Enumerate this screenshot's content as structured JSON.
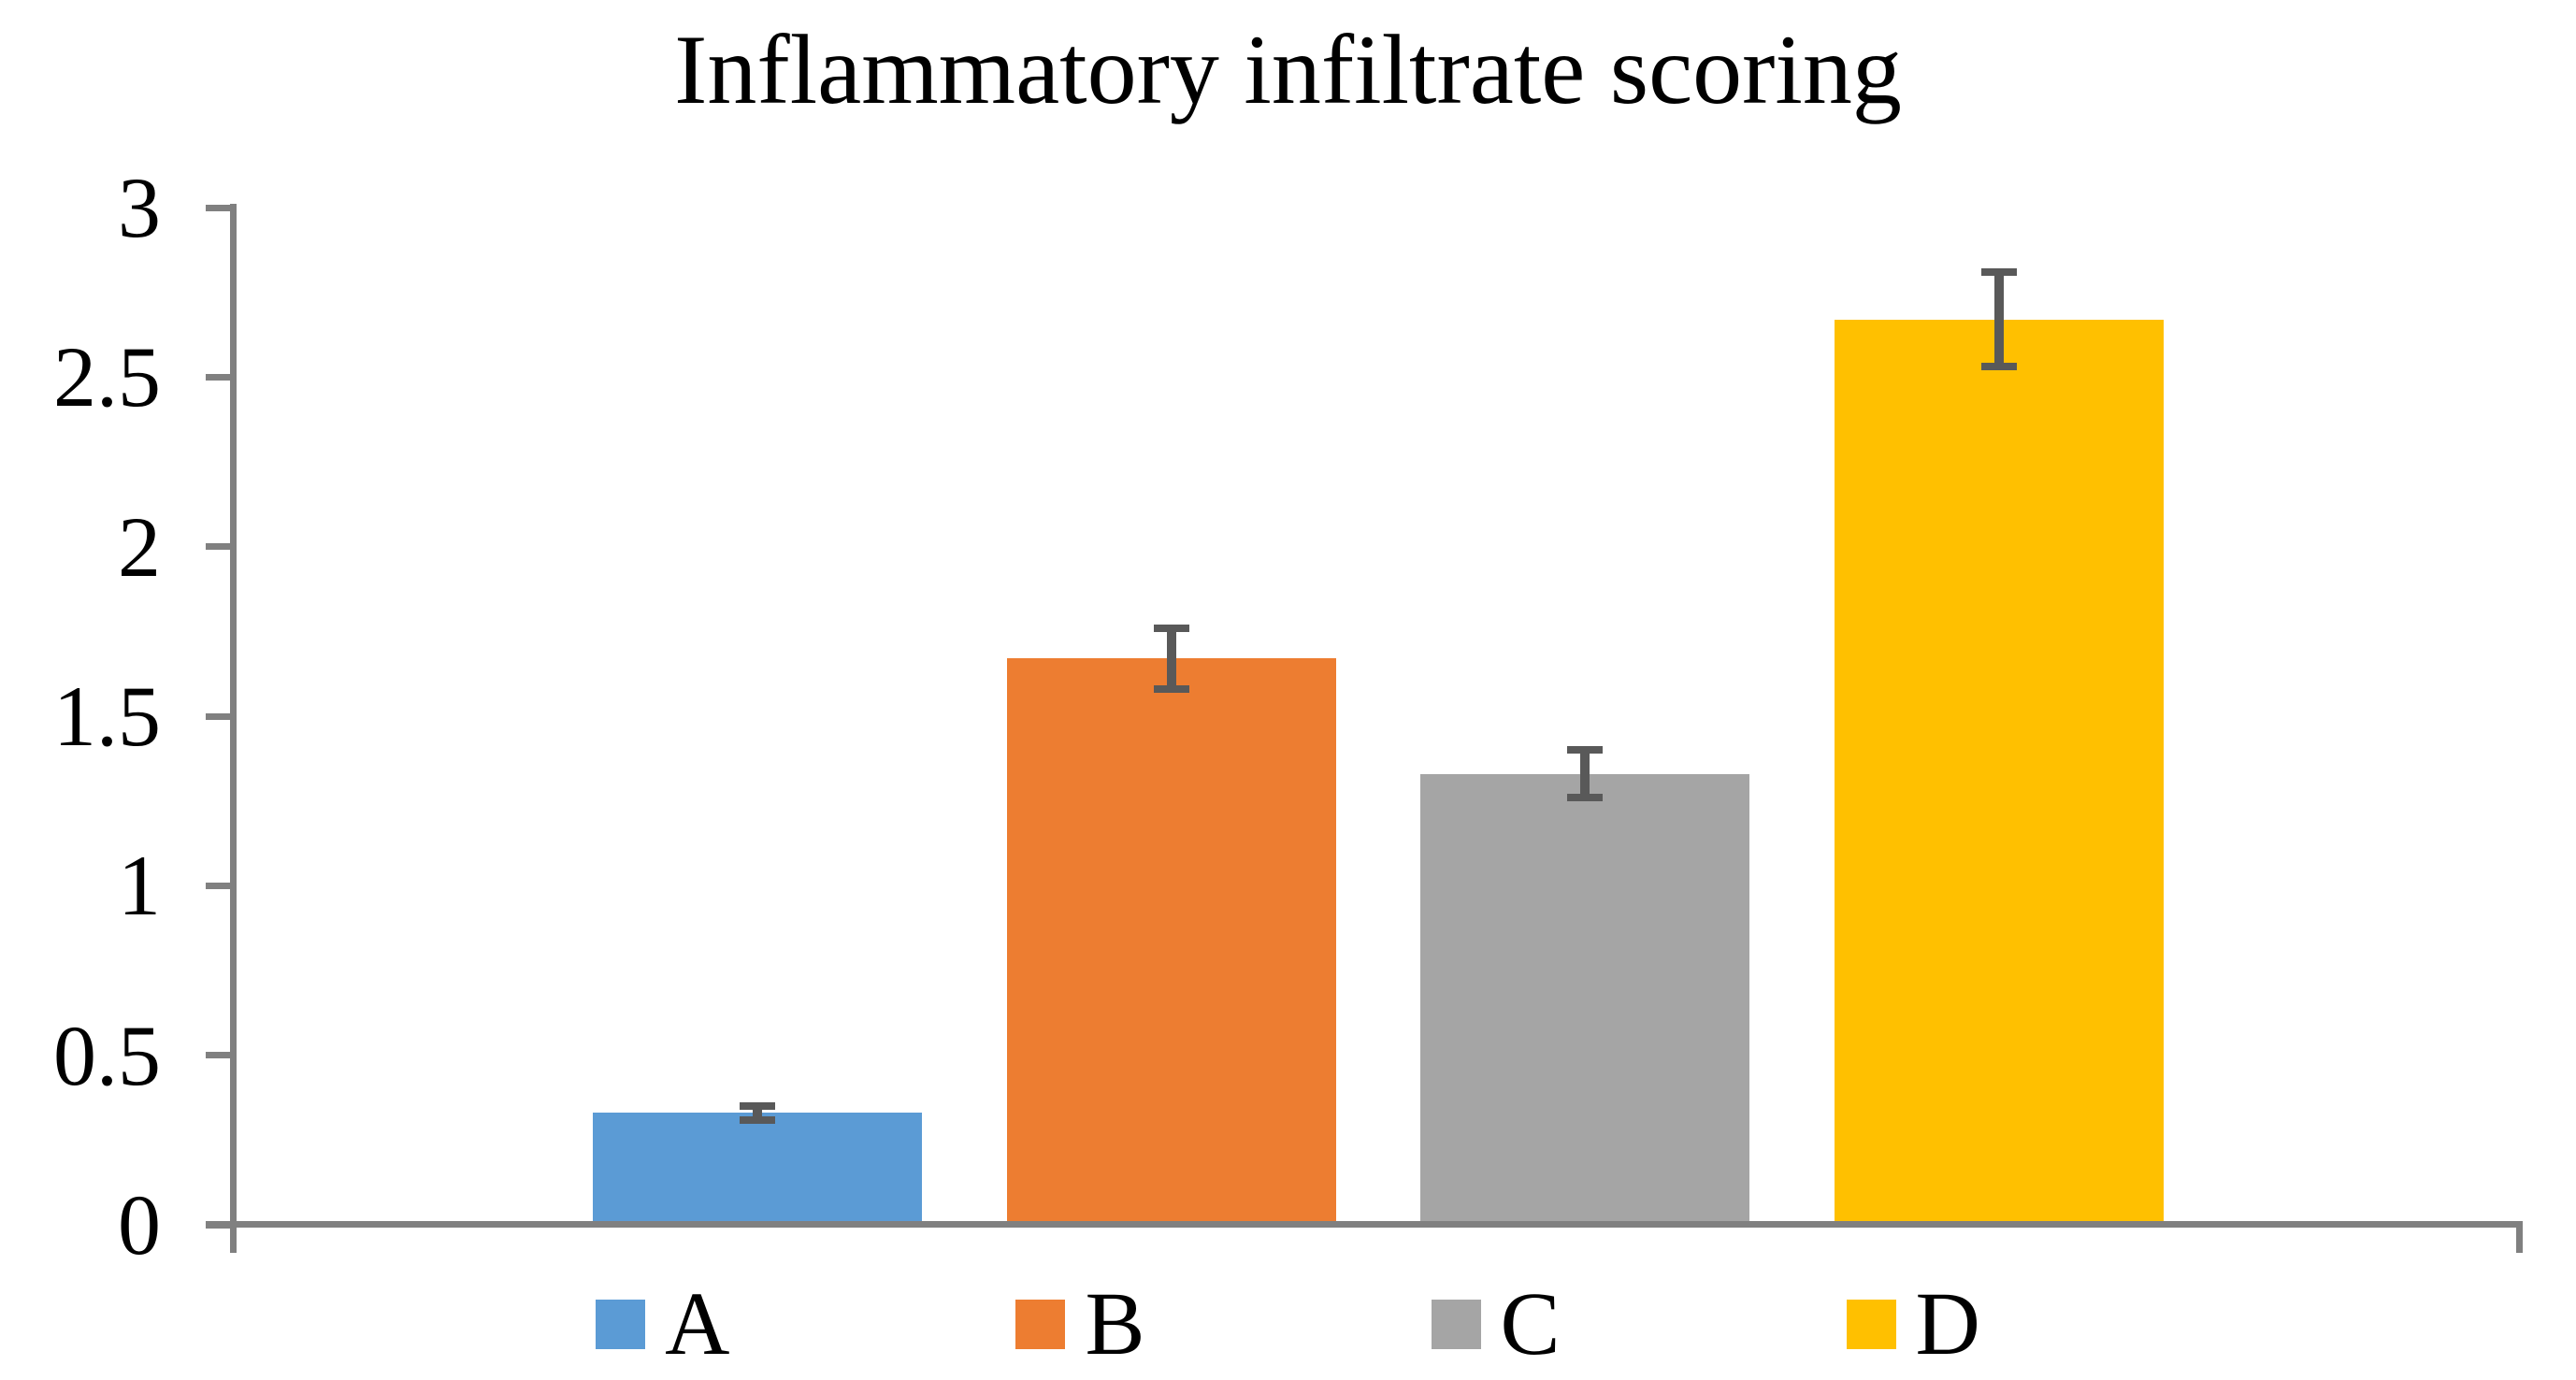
{
  "chart_data": {
    "type": "bar",
    "title": "Inflammatory infiltrate scoring",
    "categories": [
      "A",
      "B",
      "C",
      "D"
    ],
    "values": [
      0.33,
      1.67,
      1.33,
      2.67
    ],
    "errors": [
      0.02,
      0.09,
      0.07,
      0.14
    ],
    "bar_colors": [
      "#5B9BD5",
      "#ED7D31",
      "#A5A5A5",
      "#FFC000"
    ],
    "error_bar_color": "#595959",
    "axis_color": "#808080",
    "xlabel": "",
    "ylabel": "",
    "ylim": [
      0,
      3
    ],
    "yticks": [
      0,
      0.5,
      1,
      1.5,
      2,
      2.5,
      3
    ],
    "ytick_labels": [
      "0",
      "0.5",
      "1",
      "1.5",
      "2",
      "2.5",
      "3"
    ],
    "grid": false,
    "legend_position": "bottom",
    "legend_entries": [
      "A",
      "B",
      "C",
      "D"
    ]
  }
}
